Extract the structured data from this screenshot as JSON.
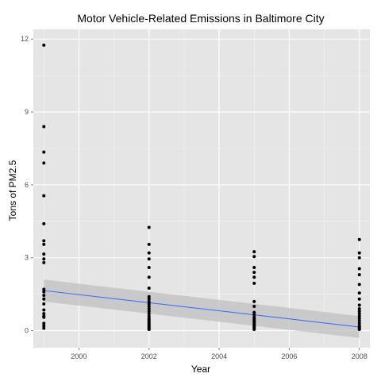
{
  "chart_data": {
    "type": "scatter",
    "title": "Motor Vehicle-Related Emissions in Baltimore City",
    "xlabel": "Year",
    "ylabel": "Tons of PM2.5",
    "xlim": [
      1998.7,
      2008.3
    ],
    "ylim": [
      -0.7,
      12.4
    ],
    "x_ticks": [
      2000,
      2002,
      2004,
      2006,
      2008
    ],
    "y_ticks": [
      0,
      3,
      6,
      9,
      12
    ],
    "grid": true,
    "legend": "none",
    "colors": {
      "panel": "#e5e5e5",
      "grid_major": "#ffffff",
      "grid_minor": "#f2f2f2",
      "points": "#000000",
      "trend_line": "#3366ff",
      "confidence_band": "#bfbfbf"
    },
    "points": {
      "1999": [
        11.75,
        8.4,
        7.35,
        6.9,
        5.55,
        4.4,
        3.7,
        3.55,
        3.15,
        2.95,
        2.8,
        1.7,
        1.6,
        1.45,
        1.3,
        1.1,
        0.85,
        0.7,
        0.6,
        0.55,
        0.3,
        0.2,
        0.1
      ],
      "2002": [
        4.25,
        3.55,
        3.2,
        2.95,
        2.6,
        2.2,
        1.75,
        1.4,
        1.3,
        1.2,
        1.1,
        1.0,
        0.9,
        0.8,
        0.7,
        0.6,
        0.5,
        0.45,
        0.4,
        0.35,
        0.3,
        0.25,
        0.2,
        0.15,
        0.1,
        0.05
      ],
      "2005": [
        3.25,
        3.05,
        2.6,
        2.4,
        2.2,
        1.95,
        1.2,
        1.0,
        0.75,
        0.65,
        0.55,
        0.5,
        0.45,
        0.4,
        0.35,
        0.3,
        0.25,
        0.2,
        0.15,
        0.1,
        0.05
      ],
      "2008": [
        3.75,
        3.2,
        3.0,
        2.55,
        2.3,
        1.9,
        1.55,
        1.3,
        1.05,
        0.9,
        0.8,
        0.7,
        0.6,
        0.5,
        0.4,
        0.3,
        0.2,
        0.15,
        0.1,
        0.05
      ]
    },
    "trend": {
      "x": [
        1999,
        2008
      ],
      "y": [
        1.65,
        0.15
      ],
      "ci_upper": [
        2.1,
        0.6
      ],
      "ci_lower": [
        1.2,
        -0.3
      ]
    }
  }
}
